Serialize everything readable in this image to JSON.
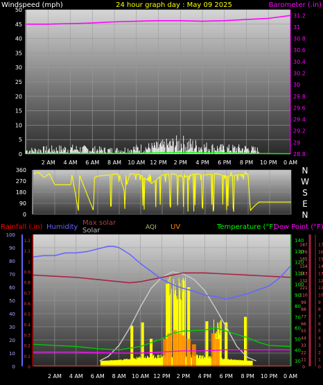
{
  "header": {
    "left_label": "Windspeed (mph)",
    "title": "24 hour graph day : May 09 2025",
    "right_label": "Barometer (.in)"
  },
  "colors": {
    "background": "#000000",
    "wind": "#ffffff",
    "gust_avg": "#00ff00",
    "barometer": "#ff00ff",
    "direction": "#ffff00",
    "rain": "#ff0000",
    "humidity": "#6666ff",
    "max_solar": "#aaaaaa",
    "solar": "#ffff00",
    "uv": "#ff8800",
    "temperature": "#00cc00",
    "dewpoint": "#ff00ff",
    "outside_temp_line": "#aa2244"
  },
  "x_ticks": [
    "2 AM",
    "4 AM",
    "6 AM",
    "8 AM",
    "10 AM",
    "12 PM",
    "2 PM",
    "4 PM",
    "6 PM",
    "8 PM",
    "10 PM",
    "0 AM"
  ],
  "chart_data": [
    {
      "type": "line",
      "name": "wind-barometer",
      "left_axis": {
        "ticks": [
          0,
          5,
          10,
          15,
          20,
          25,
          30,
          35,
          40,
          45,
          50
        ],
        "range": [
          0,
          50
        ]
      },
      "right_axis": {
        "ticks": [
          "28.8",
          "29",
          "29.2",
          "29.4",
          "29.6",
          "29.8",
          "30",
          "30.2",
          "30.4",
          "30.6",
          "30.8",
          "31",
          "31.2"
        ],
        "range": [
          28.8,
          31.3
        ]
      },
      "series": [
        {
          "key": "barometer",
          "x": [
            0,
            2,
            4,
            6,
            8,
            10,
            12,
            14,
            16,
            18,
            20,
            22,
            24
          ],
          "y": [
            31.05,
            31.05,
            31.06,
            31.07,
            31.09,
            31.1,
            31.11,
            31.11,
            31.1,
            31.11,
            31.13,
            31.15,
            31.2
          ]
        },
        {
          "key": "wind_max",
          "x": [
            0,
            2,
            4,
            6,
            8,
            10,
            12,
            14,
            16,
            18,
            20,
            21.2
          ],
          "y": [
            2,
            2.5,
            3,
            2.5,
            2,
            3,
            4,
            6,
            4,
            3,
            3,
            2
          ]
        },
        {
          "key": "wind_avg",
          "x": [
            0,
            6,
            10,
            14,
            18,
            21,
            24
          ],
          "y": [
            0.2,
            0.2,
            0.3,
            0.5,
            0.4,
            0.2,
            0.1
          ]
        }
      ],
      "annotations": [
        "2 AM",
        "4 AM",
        "6 AM",
        "8 AM",
        "10 AM",
        "12 PM",
        "2 PM",
        "4 PM",
        "6 PM",
        "8 PM",
        "10 PM",
        "0 AM"
      ]
    },
    {
      "type": "line",
      "name": "wind-direction",
      "left_axis": {
        "ticks": [
          0,
          90,
          180,
          270,
          360
        ],
        "range": [
          0,
          360
        ]
      },
      "right_axis": {
        "ticks": [
          "N",
          "W",
          "S",
          "E",
          "N"
        ]
      },
      "series": [
        {
          "key": "direction",
          "x": [
            0,
            0.5,
            1,
            1.5,
            2,
            3.5,
            3.6,
            4.2,
            4.3,
            5.6,
            5.7,
            6,
            7,
            8,
            8.5,
            9,
            10,
            11,
            12,
            13,
            14,
            15,
            16,
            17,
            18,
            19,
            20,
            20.2,
            20.5,
            21,
            22,
            24
          ],
          "y": [
            330,
            340,
            300,
            330,
            240,
            240,
            320,
            30,
            320,
            30,
            300,
            310,
            320,
            330,
            180,
            330,
            320,
            250,
            320,
            330,
            300,
            330,
            320,
            330,
            310,
            320,
            330,
            30,
            60,
            100,
            100,
            100
          ]
        }
      ]
    },
    {
      "type": "line",
      "name": "weather-combined",
      "legend": [
        "Rainfall (.in)",
        "Humidity",
        "Max solar",
        "Solar",
        "AQI",
        "UV",
        "Temperature (°F)",
        "Dew Point (°F)"
      ],
      "axes": {
        "humidity_ticks": [
          0,
          10,
          20,
          30,
          40,
          50,
          60,
          70,
          80,
          90,
          100
        ],
        "rain_ticks": [
          "0",
          "0.1",
          "0.2",
          "0.3",
          "0.4",
          "0.5",
          "0.6",
          "0.7",
          "0.8",
          "0.9",
          "1",
          "1.1",
          "1.2"
        ],
        "temp_ticks": [
          30,
          40,
          50,
          60,
          70,
          80,
          90,
          100,
          110,
          120,
          130,
          140
        ],
        "solar_ticks": [
          "0",
          "11",
          "22",
          "33",
          "44",
          "55",
          "66",
          "77",
          "88",
          "99",
          "110",
          "121",
          "132",
          "143",
          "154",
          "165",
          "176",
          "187"
        ],
        "uv_ticks": [
          "0",
          "1",
          "2",
          "3",
          "4",
          "5",
          "6",
          "7",
          "8",
          "9",
          "10",
          "11",
          "12",
          "13",
          "14",
          "15",
          "16",
          "17"
        ]
      },
      "ranges": {
        "humidity": [
          0,
          100
        ],
        "temp": [
          25,
          145
        ]
      },
      "series": [
        {
          "key": "humidity",
          "x": [
            0,
            1,
            2,
            3,
            4,
            5,
            6,
            7,
            7.5,
            8,
            9,
            10,
            11,
            12,
            13,
            14,
            15,
            16,
            17,
            18,
            19,
            20,
            21,
            22,
            23,
            24
          ],
          "y": [
            83,
            84,
            84,
            86,
            86,
            87,
            89,
            91,
            91,
            90,
            85,
            78,
            72,
            66,
            62,
            59,
            57,
            54,
            53,
            51,
            53,
            55,
            58,
            61,
            67,
            76
          ]
        },
        {
          "key": "outside",
          "x": [
            0,
            2,
            4,
            6,
            8,
            9,
            10,
            12,
            14,
            16,
            18,
            20,
            22,
            24
          ],
          "y": [
            108,
            107,
            106,
            104,
            102,
            101,
            102,
            106,
            110,
            110,
            109,
            108,
            107,
            106
          ]
        },
        {
          "key": "temperature",
          "x": [
            0,
            2,
            4,
            6,
            8,
            10,
            12,
            13,
            14,
            16,
            17,
            18,
            19,
            20,
            21,
            22,
            24
          ],
          "y": [
            45,
            44,
            43,
            41,
            40,
            43,
            50,
            55,
            57,
            58,
            60,
            57,
            54,
            51,
            47,
            44,
            43
          ]
        },
        {
          "key": "dewpoint",
          "x": [
            0,
            4,
            8,
            10,
            12,
            14,
            16,
            18,
            20,
            22,
            24
          ],
          "y": [
            38,
            38,
            37,
            37,
            38,
            39,
            39,
            40,
            40,
            40,
            40
          ]
        },
        {
          "key": "max_solar",
          "x": [
            6.2,
            7,
            8,
            9,
            10,
            11,
            12,
            13,
            14,
            15,
            16,
            17,
            18,
            19,
            20,
            20.8
          ],
          "y": [
            30,
            34,
            44,
            60,
            79,
            96,
            106,
            111,
            109,
            104,
            94,
            78,
            61,
            43,
            33,
            30
          ]
        },
        {
          "key": "solar_peaks",
          "x": [
            9.2,
            10.2,
            11,
            12.5,
            13.2,
            14,
            14.5,
            16.2,
            17.2,
            18,
            19.8
          ],
          "y": [
            62,
            65,
            50,
            100,
            106,
            104,
            97,
            66,
            69,
            65,
            70
          ]
        }
      ]
    }
  ]
}
